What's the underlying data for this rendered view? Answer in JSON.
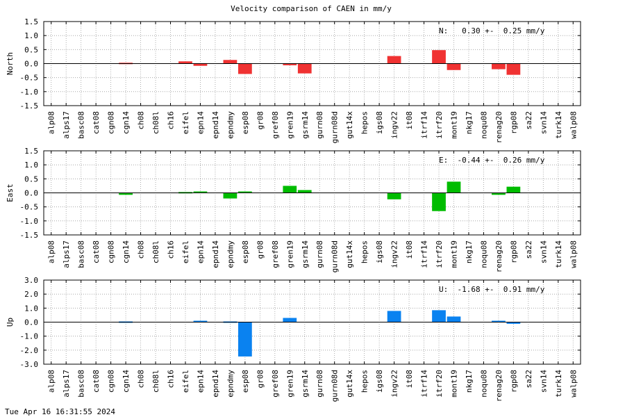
{
  "title": "Velocity comparison of CAEN in mm/y",
  "footer": "Tue Apr 16 16:31:55 2024",
  "chart_data": [
    {
      "type": "bar",
      "ylabel": "North",
      "ylim": [
        -1.5,
        1.5
      ],
      "yticks": [
        "1.5",
        "1.0",
        "0.5",
        "0.0",
        "-0.5",
        "-1.0",
        "-1.5"
      ],
      "annotation": "N:   0.30 +-  0.25 mm/y",
      "color": "#f03232",
      "grid": true,
      "categories": [
        "alp08",
        "alps17",
        "basc08",
        "cat08",
        "cgn08",
        "cgn14",
        "ch08",
        "ch08l",
        "ch16",
        "eifel",
        "epn14",
        "epnd14",
        "epndmy",
        "esp08",
        "gr08",
        "gref08",
        "gren19",
        "gsrm14",
        "gurn08",
        "gurn08d",
        "gut14x",
        "hepos",
        "igs08",
        "ingv22",
        "it08",
        "itrf14",
        "itrf20",
        "mont19",
        "nkg17",
        "noqu08",
        "renag20",
        "rgp08",
        "sa22",
        "svn14",
        "turk14",
        "walp08"
      ],
      "values": [
        0,
        0,
        0,
        0,
        0,
        0.03,
        0,
        0,
        0,
        0.08,
        -0.08,
        0,
        0.13,
        -0.37,
        0,
        0,
        -0.06,
        -0.35,
        0,
        0,
        0,
        0,
        0,
        0.27,
        0,
        0,
        0.48,
        -0.23,
        0,
        0,
        -0.2,
        -0.4,
        0,
        0,
        0,
        0
      ]
    },
    {
      "type": "bar",
      "ylabel": "East",
      "ylim": [
        -1.5,
        1.5
      ],
      "yticks": [
        "1.5",
        "1.0",
        "0.5",
        "0.0",
        "-0.5",
        "-1.0",
        "-1.5"
      ],
      "annotation": "E:  -0.44 +-  0.26 mm/y",
      "color": "#00bc00",
      "grid": true,
      "categories": [
        "alp08",
        "alps17",
        "basc08",
        "cat08",
        "cgn08",
        "cgn14",
        "ch08",
        "ch08l",
        "ch16",
        "eifel",
        "epn14",
        "epnd14",
        "epndmy",
        "esp08",
        "gr08",
        "gref08",
        "gren19",
        "gsrm14",
        "gurn08",
        "gurn08d",
        "gut14x",
        "hepos",
        "igs08",
        "ingv22",
        "it08",
        "itrf14",
        "itrf20",
        "mont19",
        "nkg17",
        "noqu08",
        "renag20",
        "rgp08",
        "sa22",
        "svn14",
        "turk14",
        "walp08"
      ],
      "values": [
        0,
        0,
        0,
        0,
        0,
        -0.07,
        0,
        0,
        0,
        0.03,
        0.05,
        0,
        -0.2,
        0.05,
        0,
        0,
        0.25,
        0.1,
        0,
        0,
        0,
        0,
        0,
        -0.23,
        0,
        0,
        -0.65,
        0.4,
        0,
        0,
        -0.07,
        0.22,
        0,
        0,
        0,
        0
      ]
    },
    {
      "type": "bar",
      "ylabel": "Up",
      "ylim": [
        -3.0,
        3.0
      ],
      "yticks": [
        "3.0",
        "2.0",
        "1.0",
        "0.0",
        "-1.0",
        "-2.0",
        "-3.0"
      ],
      "annotation": "U:  -1.68 +-  0.91 mm/y",
      "color": "#0a82f0",
      "grid": true,
      "categories": [
        "alp08",
        "alps17",
        "basc08",
        "cat08",
        "cgn08",
        "cgn14",
        "ch08",
        "ch08l",
        "ch16",
        "eifel",
        "epn14",
        "epnd14",
        "epndmy",
        "esp08",
        "gr08",
        "gref08",
        "gren19",
        "gsrm14",
        "gurn08",
        "gurn08d",
        "gut14x",
        "hepos",
        "igs08",
        "ingv22",
        "it08",
        "itrf14",
        "itrf20",
        "mont19",
        "nkg17",
        "noqu08",
        "renag20",
        "rgp08",
        "sa22",
        "svn14",
        "turk14",
        "walp08"
      ],
      "values": [
        0,
        0,
        0,
        0,
        0,
        0.05,
        0,
        0,
        0,
        0,
        0.1,
        0,
        0.05,
        -2.45,
        0,
        0,
        0.3,
        0,
        0,
        0,
        0,
        0,
        0,
        0.8,
        0,
        0,
        0.85,
        0.4,
        0,
        0,
        0.1,
        -0.12,
        0,
        0,
        0,
        0
      ]
    }
  ]
}
